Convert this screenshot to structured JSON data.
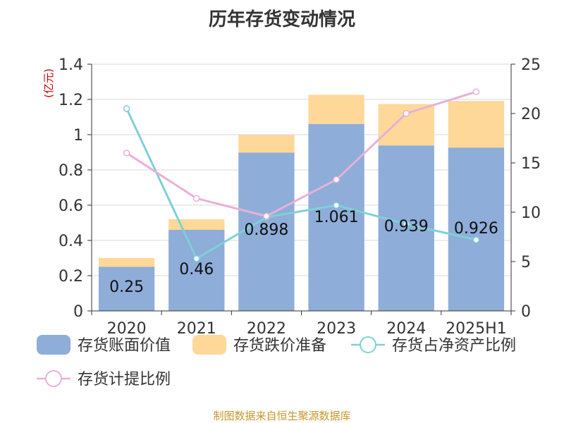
{
  "chart_data": {
    "type": "bar",
    "title": "历年存货变动情况",
    "categories": [
      "2020",
      "2021",
      "2022",
      "2023",
      "2024",
      "2025H1"
    ],
    "y_left": {
      "unit_label": "(亿元)",
      "ylim": [
        0,
        1.4
      ],
      "ticks": [
        "0",
        "0.2",
        "0.4",
        "0.6",
        "0.8",
        "1",
        "1.2",
        "1.4"
      ]
    },
    "y_right": {
      "ylim": [
        0,
        25
      ],
      "ticks": [
        "0",
        "5",
        "10",
        "15",
        "20",
        "25"
      ]
    },
    "grid": true,
    "legend_position": "bottom",
    "series": [
      {
        "name": "存货账面价值",
        "kind": "bar",
        "axis": "left",
        "color": "#8eadd9",
        "values": [
          0.25,
          0.46,
          0.898,
          1.061,
          0.939,
          0.926
        ],
        "labels": [
          "0.25",
          "0.46",
          "0.898",
          "1.061",
          "0.939",
          "0.926"
        ]
      },
      {
        "name": "存货跌价准备",
        "kind": "bar",
        "axis": "left",
        "color": "#fdd898",
        "values": [
          0.05,
          0.06,
          0.1,
          0.165,
          0.235,
          0.265
        ]
      },
      {
        "name": "存货占净资产比例",
        "kind": "line",
        "axis": "right",
        "color": "#7fd0d6",
        "values": [
          20.5,
          5.3,
          9.5,
          10.7,
          8.8,
          7.2
        ]
      },
      {
        "name": "存货计提比例",
        "kind": "line",
        "axis": "right",
        "color": "#e7b1d7",
        "values": [
          16.0,
          11.4,
          9.6,
          13.3,
          20.0,
          22.2
        ]
      }
    ]
  },
  "source": "制图数据来自恒生聚源数据库"
}
